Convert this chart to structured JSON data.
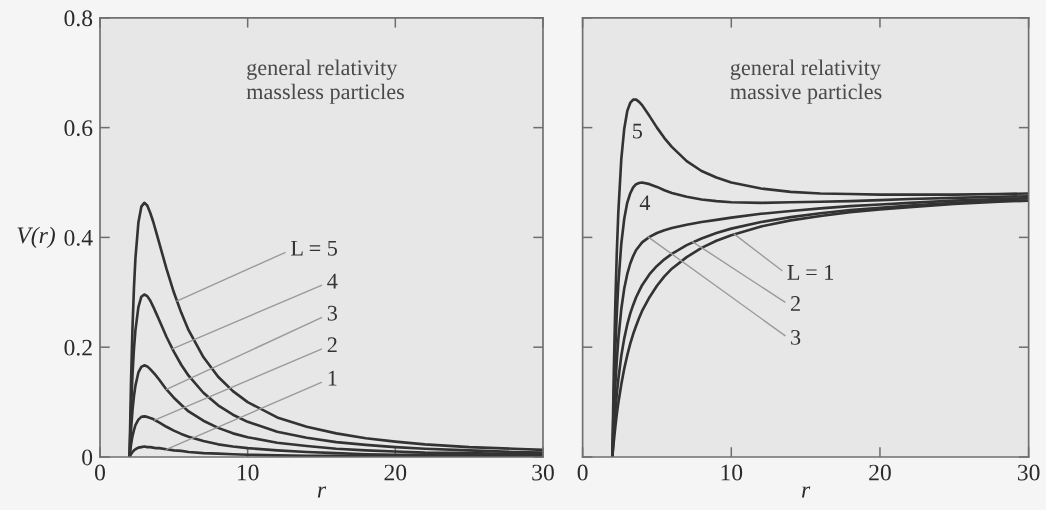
{
  "chart_data": [
    {
      "type": "line",
      "title": "general relativity\nmassless particles",
      "xlabel": "r",
      "ylabel": "V(r)",
      "x": [
        2,
        2.1,
        2.2,
        2.3,
        2.4,
        2.6,
        2.8,
        3,
        3.2,
        3.4,
        3.6,
        3.8,
        4,
        4.5,
        5,
        5.5,
        6,
        7,
        8,
        9,
        10,
        12,
        14,
        16,
        18,
        20,
        22,
        25,
        28,
        30
      ],
      "series": [
        {
          "color": "#333333",
          "values": [
            0,
            0.005,
            0.009,
            0.012,
            0.014,
            0.017,
            0.018,
            0.019,
            0.018,
            0.018,
            0.017,
            0.016,
            0.016,
            0.014,
            0.012,
            0.011,
            0.009,
            0.007,
            0.006,
            0.005,
            0.004,
            0.003,
            0.002,
            0.002,
            0.001,
            0.001,
            0.001,
            0.001,
            0.001,
            0.001
          ]
        },
        {
          "color": "#333333",
          "x": [
            2,
            2.1,
            2.2,
            2.3,
            2.4,
            2.6,
            2.8,
            3,
            3.2,
            3.4,
            3.6,
            3.8,
            4,
            4.5,
            5,
            5.5,
            6,
            7,
            8,
            9,
            10,
            12,
            14,
            16,
            18,
            20,
            22,
            25,
            29
          ],
          "values": [
            0,
            0.022,
            0.038,
            0.049,
            0.058,
            0.068,
            0.073,
            0.074,
            0.073,
            0.071,
            0.069,
            0.066,
            0.063,
            0.055,
            0.048,
            0.042,
            0.037,
            0.029,
            0.023,
            0.019,
            0.016,
            0.012,
            0.009,
            0.007,
            0.005,
            0.004,
            0.004,
            0.003,
            0.002
          ]
        },
        {
          "color": "#333333",
          "values": [
            0,
            0.049,
            0.085,
            0.111,
            0.13,
            0.154,
            0.164,
            0.167,
            0.165,
            0.16,
            0.154,
            0.148,
            0.141,
            0.123,
            0.108,
            0.095,
            0.083,
            0.066,
            0.053,
            0.043,
            0.036,
            0.026,
            0.02,
            0.015,
            0.012,
            0.01,
            0.008,
            0.007,
            0.005,
            0.005
          ]
        },
        {
          "color": "#333333",
          "values": [
            0,
            0.086,
            0.15,
            0.197,
            0.231,
            0.273,
            0.292,
            0.296,
            0.293,
            0.285,
            0.274,
            0.262,
            0.25,
            0.219,
            0.192,
            0.168,
            0.148,
            0.117,
            0.094,
            0.077,
            0.064,
            0.046,
            0.035,
            0.027,
            0.022,
            0.018,
            0.015,
            0.012,
            0.009,
            0.008
          ]
        },
        {
          "color": "#333333",
          "values": [
            0,
            0.135,
            0.235,
            0.308,
            0.362,
            0.427,
            0.456,
            0.463,
            0.458,
            0.445,
            0.429,
            0.41,
            0.391,
            0.343,
            0.3,
            0.263,
            0.231,
            0.182,
            0.146,
            0.12,
            0.1,
            0.072,
            0.055,
            0.043,
            0.034,
            0.028,
            0.023,
            0.018,
            0.015,
            0.013
          ]
        }
      ],
      "xlim": [
        0,
        30
      ],
      "xticks": [
        0,
        10,
        20,
        30
      ],
      "ylim": [
        0,
        0.8
      ],
      "yticks": [
        0,
        0.2,
        0.4,
        0.6,
        0.8
      ],
      "annotations": [
        {
          "text": "L = 5",
          "x": 5.2,
          "y": 0.284
        },
        {
          "text": "4",
          "x": 4.9,
          "y": 0.197
        },
        {
          "text": "3",
          "x": 4.5,
          "y": 0.123
        },
        {
          "text": "2",
          "x": 3.7,
          "y": 0.067
        },
        {
          "text": "1",
          "x": 4.5,
          "y": 0.014
        }
      ]
    },
    {
      "type": "line",
      "title": "general relativity\nmassive particles",
      "xlabel": "r",
      "x": [
        2,
        2.1,
        2.2,
        2.3,
        2.4,
        2.6,
        2.8,
        3,
        3.2,
        3.4,
        3.6,
        3.8,
        4,
        4.5,
        5,
        5.5,
        6,
        7,
        8,
        9,
        10,
        12,
        14,
        16,
        18,
        20,
        22,
        25,
        28,
        30
      ],
      "series": [
        {
          "color": "#333333",
          "values": [
            0,
            0.029,
            0.055,
            0.078,
            0.098,
            0.132,
            0.161,
            0.185,
            0.206,
            0.224,
            0.239,
            0.253,
            0.266,
            0.291,
            0.312,
            0.329,
            0.343,
            0.364,
            0.381,
            0.394,
            0.404,
            0.42,
            0.431,
            0.439,
            0.446,
            0.451,
            0.455,
            0.461,
            0.465,
            0.467
          ]
        },
        {
          "color": "#333333",
          "x": [
            2,
            2.1,
            2.2,
            2.3,
            2.4,
            2.6,
            2.8,
            3,
            3.2,
            3.4,
            3.6,
            3.8,
            4,
            4.5,
            5,
            5.5,
            6,
            7,
            8,
            9,
            10,
            12,
            14,
            16,
            18,
            20,
            22,
            25,
            29
          ],
          "values": [
            0,
            0.045,
            0.083,
            0.115,
            0.141,
            0.184,
            0.216,
            0.241,
            0.261,
            0.277,
            0.291,
            0.302,
            0.313,
            0.333,
            0.348,
            0.36,
            0.37,
            0.386,
            0.398,
            0.408,
            0.416,
            0.428,
            0.437,
            0.444,
            0.45,
            0.454,
            0.458,
            0.463,
            0.468
          ]
        },
        {
          "color": "#333333",
          "values": [
            0,
            0.072,
            0.13,
            0.176,
            0.214,
            0.269,
            0.307,
            0.333,
            0.352,
            0.366,
            0.377,
            0.384,
            0.391,
            0.401,
            0.408,
            0.413,
            0.417,
            0.423,
            0.428,
            0.432,
            0.436,
            0.443,
            0.448,
            0.453,
            0.457,
            0.46,
            0.463,
            0.467,
            0.47,
            0.471
          ]
        },
        {
          "color": "#333333",
          "values": [
            0,
            0.11,
            0.196,
            0.262,
            0.315,
            0.388,
            0.434,
            0.463,
            0.48,
            0.491,
            0.497,
            0.499,
            0.5,
            0.497,
            0.492,
            0.486,
            0.481,
            0.474,
            0.469,
            0.466,
            0.464,
            0.463,
            0.464,
            0.465,
            0.466,
            0.468,
            0.47,
            0.472,
            0.474,
            0.475
          ]
        },
        {
          "color": "#333333",
          "values": [
            0,
            0.159,
            0.28,
            0.373,
            0.445,
            0.542,
            0.598,
            0.63,
            0.645,
            0.651,
            0.651,
            0.647,
            0.641,
            0.621,
            0.6,
            0.581,
            0.565,
            0.539,
            0.521,
            0.509,
            0.5,
            0.489,
            0.483,
            0.48,
            0.479,
            0.478,
            0.478,
            0.478,
            0.479,
            0.48
          ]
        }
      ],
      "xlim": [
        0,
        30
      ],
      "xticks": [
        0,
        10,
        20,
        30
      ],
      "ylim": [
        0,
        0.8
      ],
      "yticks": [
        0,
        0.2,
        0.4,
        0.6,
        0.8
      ],
      "tick_labels": "x",
      "annotations": [
        {
          "text": "5",
          "x": 3.4,
          "y": 0.651
        },
        {
          "text": "4",
          "x": 4,
          "y": 0.5
        },
        {
          "text": "L = 1",
          "x": 10.2,
          "y": 0.406
        },
        {
          "text": "2",
          "x": 7.4,
          "y": 0.392
        },
        {
          "text": "3",
          "x": 4.4,
          "y": 0.401
        }
      ]
    }
  ]
}
